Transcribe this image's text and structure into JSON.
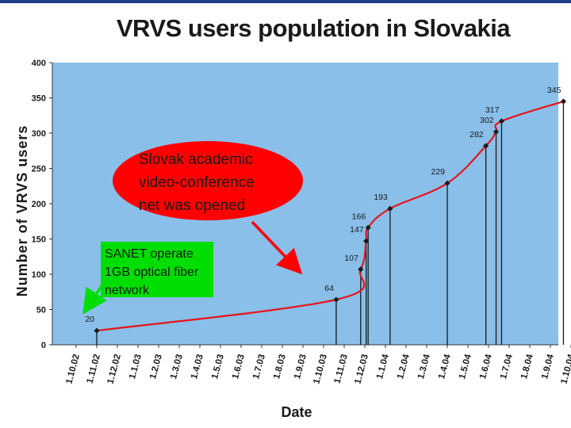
{
  "chart_data": {
    "type": "line",
    "title": "VRVS users population in Slovakia",
    "xlabel": "Date",
    "ylabel": "Number of VRVS users",
    "ylim": [
      0,
      400
    ],
    "y_ticks": [
      "0",
      "50",
      "100",
      "150",
      "200",
      "250",
      "300",
      "350",
      "400"
    ],
    "x_ticks": [
      "1.10.02",
      "1.11.02",
      "1.12.02",
      "1.1.03",
      "1.2.03",
      "1.3.03",
      "1.4.03",
      "1.5.03",
      "1.6.03",
      "1.7.03",
      "1.8.03",
      "1.9.03",
      "1.10.03",
      "1.11.03",
      "1.12.03",
      "1.1.04",
      "1.2.04",
      "1.3.04",
      "1.4.04",
      "1.5.04",
      "1.6.04",
      "1.7.04",
      "1.8.04",
      "1.9.04",
      "1.10.04"
    ],
    "series": [
      {
        "color": "#e8141b",
        "points": [
          {
            "x": "2002-11-01",
            "y": 20,
            "label": "20"
          },
          {
            "x": "2003-10-20",
            "y": 64,
            "label": "64"
          },
          {
            "x": "2003-11-25",
            "y": 107,
            "label": "107"
          },
          {
            "x": "2003-12-03",
            "y": 147,
            "label": "147"
          },
          {
            "x": "2003-12-06",
            "y": 166,
            "label": "166"
          },
          {
            "x": "2004-01-08",
            "y": 193,
            "label": "193"
          },
          {
            "x": "2004-04-01",
            "y": 229,
            "label": "229"
          },
          {
            "x": "2004-05-28",
            "y": 282,
            "label": "282"
          },
          {
            "x": "2004-06-12",
            "y": 302,
            "label": "302"
          },
          {
            "x": "2004-06-20",
            "y": 317,
            "label": "317"
          },
          {
            "x": "2004-09-20",
            "y": 345,
            "label": "345"
          }
        ]
      }
    ],
    "plot_background": "#89bfe9",
    "grid": false
  },
  "annotations": {
    "red_callout": {
      "lines": [
        "Slovak academic",
        "video-conference",
        "net was opened"
      ],
      "color": "#ff0000"
    },
    "green_callout": {
      "lines": [
        "SANET operate",
        "1GB optical fiber",
        "network"
      ],
      "color": "#00dd00"
    }
  }
}
